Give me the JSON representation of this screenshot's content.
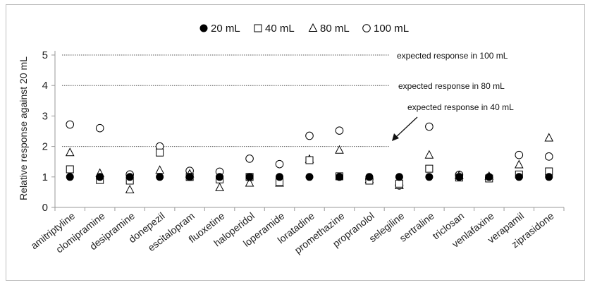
{
  "chart_data": {
    "type": "scatter",
    "title": "",
    "xlabel": "",
    "ylabel": "Relative response against 20 mL",
    "ylim": [
      0,
      5
    ],
    "yticks": [
      0,
      1,
      2,
      3,
      4,
      5
    ],
    "grid": false,
    "legend_position": "top-center",
    "categories": [
      "amitriptyline",
      "clomipramine",
      "desipramine",
      "donepezil",
      "escitalopram",
      "fluoxetine",
      "haloperidol",
      "loperamide",
      "loratadine",
      "promethazine",
      "propranolol",
      "selegiline",
      "sertraline",
      "triclosan",
      "venlafaxine",
      "verapamil",
      "ziprasidone"
    ],
    "series": [
      {
        "name": "20 mL",
        "marker": "filled-circle",
        "values": [
          1.0,
          1.0,
          1.0,
          1.0,
          1.0,
          1.0,
          1.0,
          1.0,
          1.0,
          1.0,
          1.0,
          1.0,
          1.0,
          1.0,
          1.0,
          1.0,
          1.0
        ]
      },
      {
        "name": "40 mL",
        "marker": "open-square",
        "values": [
          1.25,
          0.9,
          0.88,
          1.8,
          1.0,
          0.92,
          1.0,
          0.83,
          1.55,
          1.02,
          0.88,
          0.78,
          1.27,
          0.98,
          0.95,
          1.08,
          1.18
        ]
      },
      {
        "name": "80 mL",
        "marker": "open-triangle",
        "values": [
          1.8,
          1.12,
          0.58,
          1.22,
          1.1,
          0.65,
          0.8,
          0.8,
          1.58,
          1.88,
          0.92,
          0.72,
          1.72,
          1.05,
          1.02,
          1.4,
          2.28
        ]
      },
      {
        "name": "100 mL",
        "marker": "open-circle",
        "values": [
          2.72,
          2.6,
          1.08,
          2.0,
          1.2,
          1.17,
          1.6,
          1.42,
          2.35,
          2.52,
          0.93,
          0.72,
          2.65,
          1.07,
          0.97,
          1.72,
          1.67
        ]
      }
    ],
    "reference_lines": [
      {
        "y": 5,
        "label": "expected response in 100 mL"
      },
      {
        "y": 4,
        "label": "expected response in 80 mL"
      },
      {
        "y": 2,
        "label": "expected response in 40 mL"
      }
    ]
  }
}
